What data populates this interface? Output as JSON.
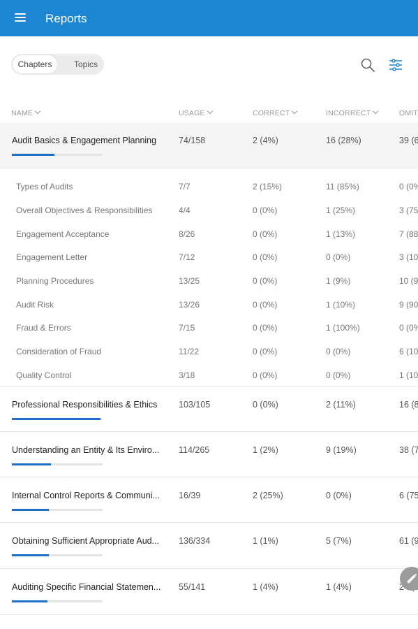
{
  "appbar": {
    "title": "Reports"
  },
  "toggle": {
    "chapters": "Chapters",
    "topics": "Topics"
  },
  "columns": {
    "name": "NAME",
    "usage": "USAGE",
    "correct": "CORRECT",
    "incorrect": "INCORRECT",
    "omit": "OMIT"
  },
  "chapters": [
    {
      "name": "Audit Basics & Engagement Planning",
      "usage": "74/158",
      "correct": "2 (4%)",
      "incorrect": "16 (28%)",
      "omit": "39 (6",
      "progress": 0.47
    },
    {
      "name": "Professional Responsibilities & Ethics",
      "usage": "103/105",
      "correct": "0 (0%)",
      "incorrect": "2 (11%)",
      "omit": "16 (8",
      "progress": 0.98
    },
    {
      "name": "Understanding an Entity & Its Enviro...",
      "usage": "114/265",
      "correct": "1 (2%)",
      "incorrect": "9 (19%)",
      "omit": "38 (7",
      "progress": 0.43
    },
    {
      "name": "Internal Control Reports & Communi...",
      "usage": "16/39",
      "correct": "2 (25%)",
      "incorrect": "0 (0%)",
      "omit": "6 (75",
      "progress": 0.41
    },
    {
      "name": "Obtaining Sufficient Appropriate Aud...",
      "usage": "136/334",
      "correct": "1 (1%)",
      "incorrect": "5 (7%)",
      "omit": "61 (9",
      "progress": 0.41
    },
    {
      "name": "Auditing Specific Financial Statemen...",
      "usage": "55/141",
      "correct": "1 (4%)",
      "incorrect": "1 (4%)",
      "omit": "24 (9",
      "progress": 0.39
    }
  ],
  "topics": [
    {
      "name": "Types of Audits",
      "usage": "7/7",
      "correct": "2 (15%)",
      "incorrect": "11 (85%)",
      "omit": "0 (0%"
    },
    {
      "name": "Overall Objectives & Responsibilities",
      "usage": "4/4",
      "correct": "0 (0%)",
      "incorrect": "1 (25%)",
      "omit": "3 (75"
    },
    {
      "name": "Engagement Acceptance",
      "usage": "8/26",
      "correct": "0 (0%)",
      "incorrect": "1 (13%)",
      "omit": "7 (88"
    },
    {
      "name": "Engagement Letter",
      "usage": "7/12",
      "correct": "0 (0%)",
      "incorrect": "0 (0%)",
      "omit": "3 (10"
    },
    {
      "name": "Planning Procedures",
      "usage": "13/25",
      "correct": "0 (0%)",
      "incorrect": "1 (9%)",
      "omit": "10 (9"
    },
    {
      "name": "Audit Risk",
      "usage": "13/26",
      "correct": "0 (0%)",
      "incorrect": "1 (10%)",
      "omit": "9 (90"
    },
    {
      "name": "Fraud & Errors",
      "usage": "7/15",
      "correct": "0 (0%)",
      "incorrect": "1 (100%)",
      "omit": "0 (0%"
    },
    {
      "name": "Consideration of Fraud",
      "usage": "11/22",
      "correct": "0 (0%)",
      "incorrect": "0 (0%)",
      "omit": "6 (10"
    },
    {
      "name": "Quality Control",
      "usage": "3/18",
      "correct": "0 (0%)",
      "incorrect": "0 (0%)",
      "omit": "1 (10"
    }
  ],
  "icons": {
    "menu": "menu-icon",
    "search": "search-icon",
    "filter": "sliders-icon",
    "fab": "pencil-icon"
  },
  "colors": {
    "appbar": "#1d86d2",
    "progress": "#1f6fc7"
  }
}
